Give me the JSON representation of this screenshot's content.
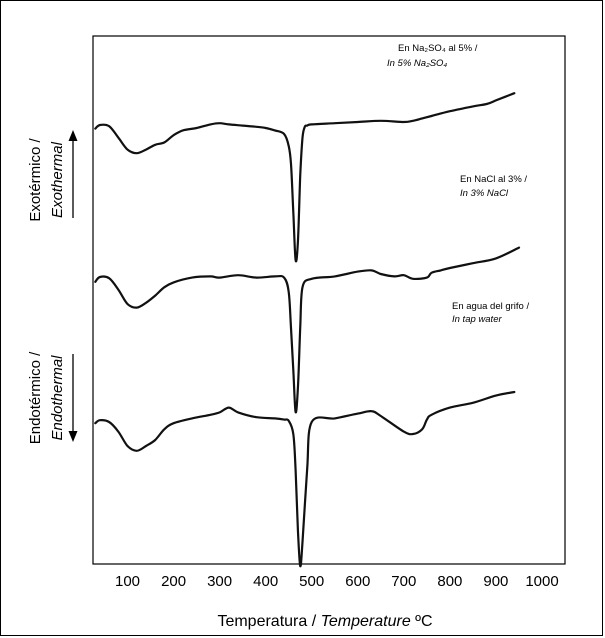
{
  "chart_data": {
    "type": "line",
    "xlabel": "Temperatura / ",
    "xlabel_italic": "Temperature",
    "xlabel_unit": " ºC",
    "xlim": [
      25,
      1050
    ],
    "xticks": [
      "100",
      "200",
      "300",
      "400",
      "500",
      "600",
      "700",
      "800",
      "900",
      "1000"
    ],
    "ylabel_exo": "Exotérmico /",
    "ylabel_exo_italic": "Exothermal",
    "ylabel_endo": "Endotérmico /",
    "ylabel_endo_italic": "Endothermal",
    "grid": false,
    "series": [
      {
        "name_es": "En Na₂SO₄ al 5% /",
        "name_en": "In 5% Na₂SO₄",
        "color": "#111111",
        "x": [
          30,
          40,
          60,
          80,
          100,
          120,
          140,
          160,
          180,
          200,
          220,
          250,
          280,
          300,
          320,
          350,
          380,
          400,
          420,
          440,
          450,
          455,
          460,
          465,
          470,
          475,
          480,
          485,
          490,
          500,
          550,
          600,
          650,
          700,
          720,
          740,
          760,
          800,
          850,
          880,
          900,
          920,
          940
        ],
        "y": [
          -0.5,
          2.5,
          1.5,
          -8,
          -18,
          -21,
          -18,
          -14,
          -12,
          -6,
          -2,
          0,
          3,
          4,
          3,
          2,
          1,
          0,
          -2,
          -5,
          -15,
          -30,
          -70,
          -110,
          -95,
          -40,
          -8,
          1,
          2,
          3,
          4,
          5,
          6,
          5,
          6,
          8,
          10,
          14,
          18,
          20,
          23,
          26,
          29
        ]
      },
      {
        "name_es": "En NaCl al 3% /",
        "name_en": "In 3% NaCl",
        "color": "#111111",
        "x": [
          30,
          40,
          60,
          80,
          100,
          120,
          140,
          160,
          180,
          200,
          240,
          280,
          300,
          340,
          380,
          420,
          440,
          450,
          455,
          460,
          465,
          470,
          475,
          480,
          500,
          550,
          600,
          630,
          650,
          680,
          700,
          720,
          750,
          760,
          780,
          800,
          850,
          900,
          950
        ],
        "y": [
          -1.5,
          2.5,
          1.5,
          -8,
          -20,
          -23,
          -19,
          -13,
          -6,
          -2,
          2,
          3,
          2,
          4,
          2,
          3,
          2,
          -10,
          -40,
          -75,
          -110,
          -90,
          -40,
          -6,
          1,
          3,
          7,
          8,
          5,
          3,
          4,
          1,
          2,
          6,
          8,
          10,
          14,
          18,
          27
        ]
      },
      {
        "name_es": "En agua del grifo /",
        "name_en": "In tap water",
        "color": "#111111",
        "x": [
          30,
          40,
          60,
          80,
          100,
          120,
          140,
          160,
          180,
          200,
          240,
          280,
          300,
          320,
          340,
          380,
          420,
          440,
          450,
          460,
          465,
          470,
          475,
          480,
          490,
          500,
          550,
          600,
          630,
          650,
          700,
          720,
          740,
          750,
          760,
          800,
          850,
          900,
          940
        ],
        "y": [
          -1,
          1.5,
          0,
          -8,
          -20,
          -24,
          -20,
          -15,
          -6,
          -1,
          3,
          6,
          8,
          12,
          8,
          4,
          3,
          2,
          1,
          -10,
          -40,
          -90,
          -120,
          -100,
          -40,
          0,
          3,
          7,
          9,
          5,
          -8,
          -10,
          -6,
          2,
          6,
          12,
          16,
          22,
          25
        ]
      }
    ]
  }
}
